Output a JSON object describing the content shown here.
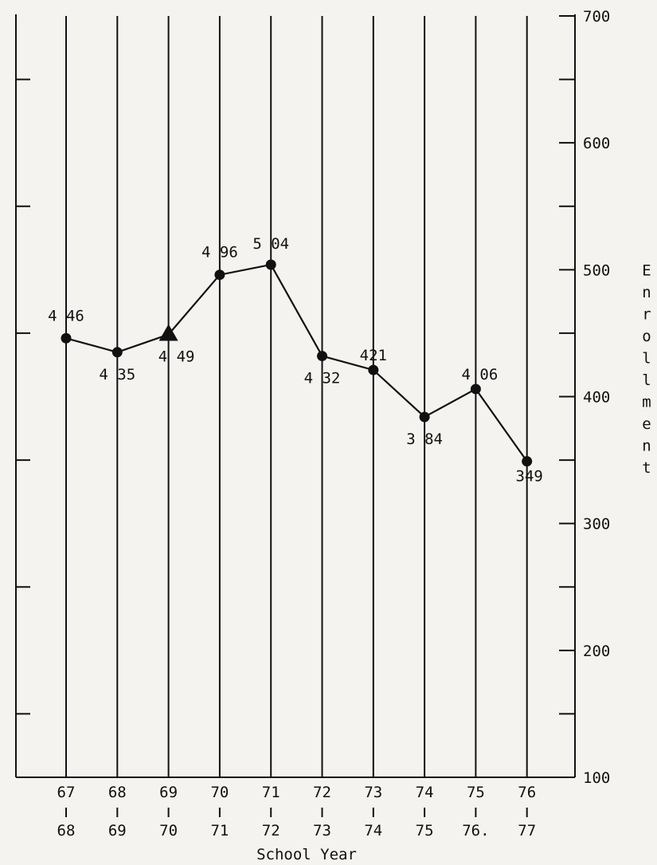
{
  "chart_data": {
    "type": "line",
    "xlabel": "School Year",
    "ylabel": "Enrollment",
    "categories": [
      [
        "67",
        "68"
      ],
      [
        "68",
        "69"
      ],
      [
        "69",
        "70"
      ],
      [
        "70",
        "71"
      ],
      [
        "71",
        "72"
      ],
      [
        "72",
        "73"
      ],
      [
        "73",
        "74"
      ],
      [
        "74",
        "75"
      ],
      [
        "75",
        "76."
      ],
      [
        "76",
        "77"
      ]
    ],
    "series": [
      {
        "values": [
          446,
          435,
          449,
          496,
          504,
          432,
          421,
          384,
          406,
          349
        ],
        "labels": [
          "4 46",
          "4 35",
          "4 49",
          "4 96",
          "5 04",
          "4 32",
          "421",
          "3 84",
          "4 06",
          "349"
        ]
      }
    ],
    "marker_shapes": [
      "circle",
      "circle",
      "triangle",
      "circle",
      "circle",
      "circle",
      "circle",
      "circle",
      "circle",
      "circle"
    ],
    "ylim": [
      100,
      700
    ],
    "y_ticks": [
      "100",
      "200",
      "300",
      "400",
      "500",
      "600",
      "700"
    ],
    "y_minor_step": 50,
    "y_axis_side": "right",
    "grid": "vertical lines at each school year",
    "colors": {
      "ink": "#111111",
      "paper": "#f4f3ef"
    }
  }
}
